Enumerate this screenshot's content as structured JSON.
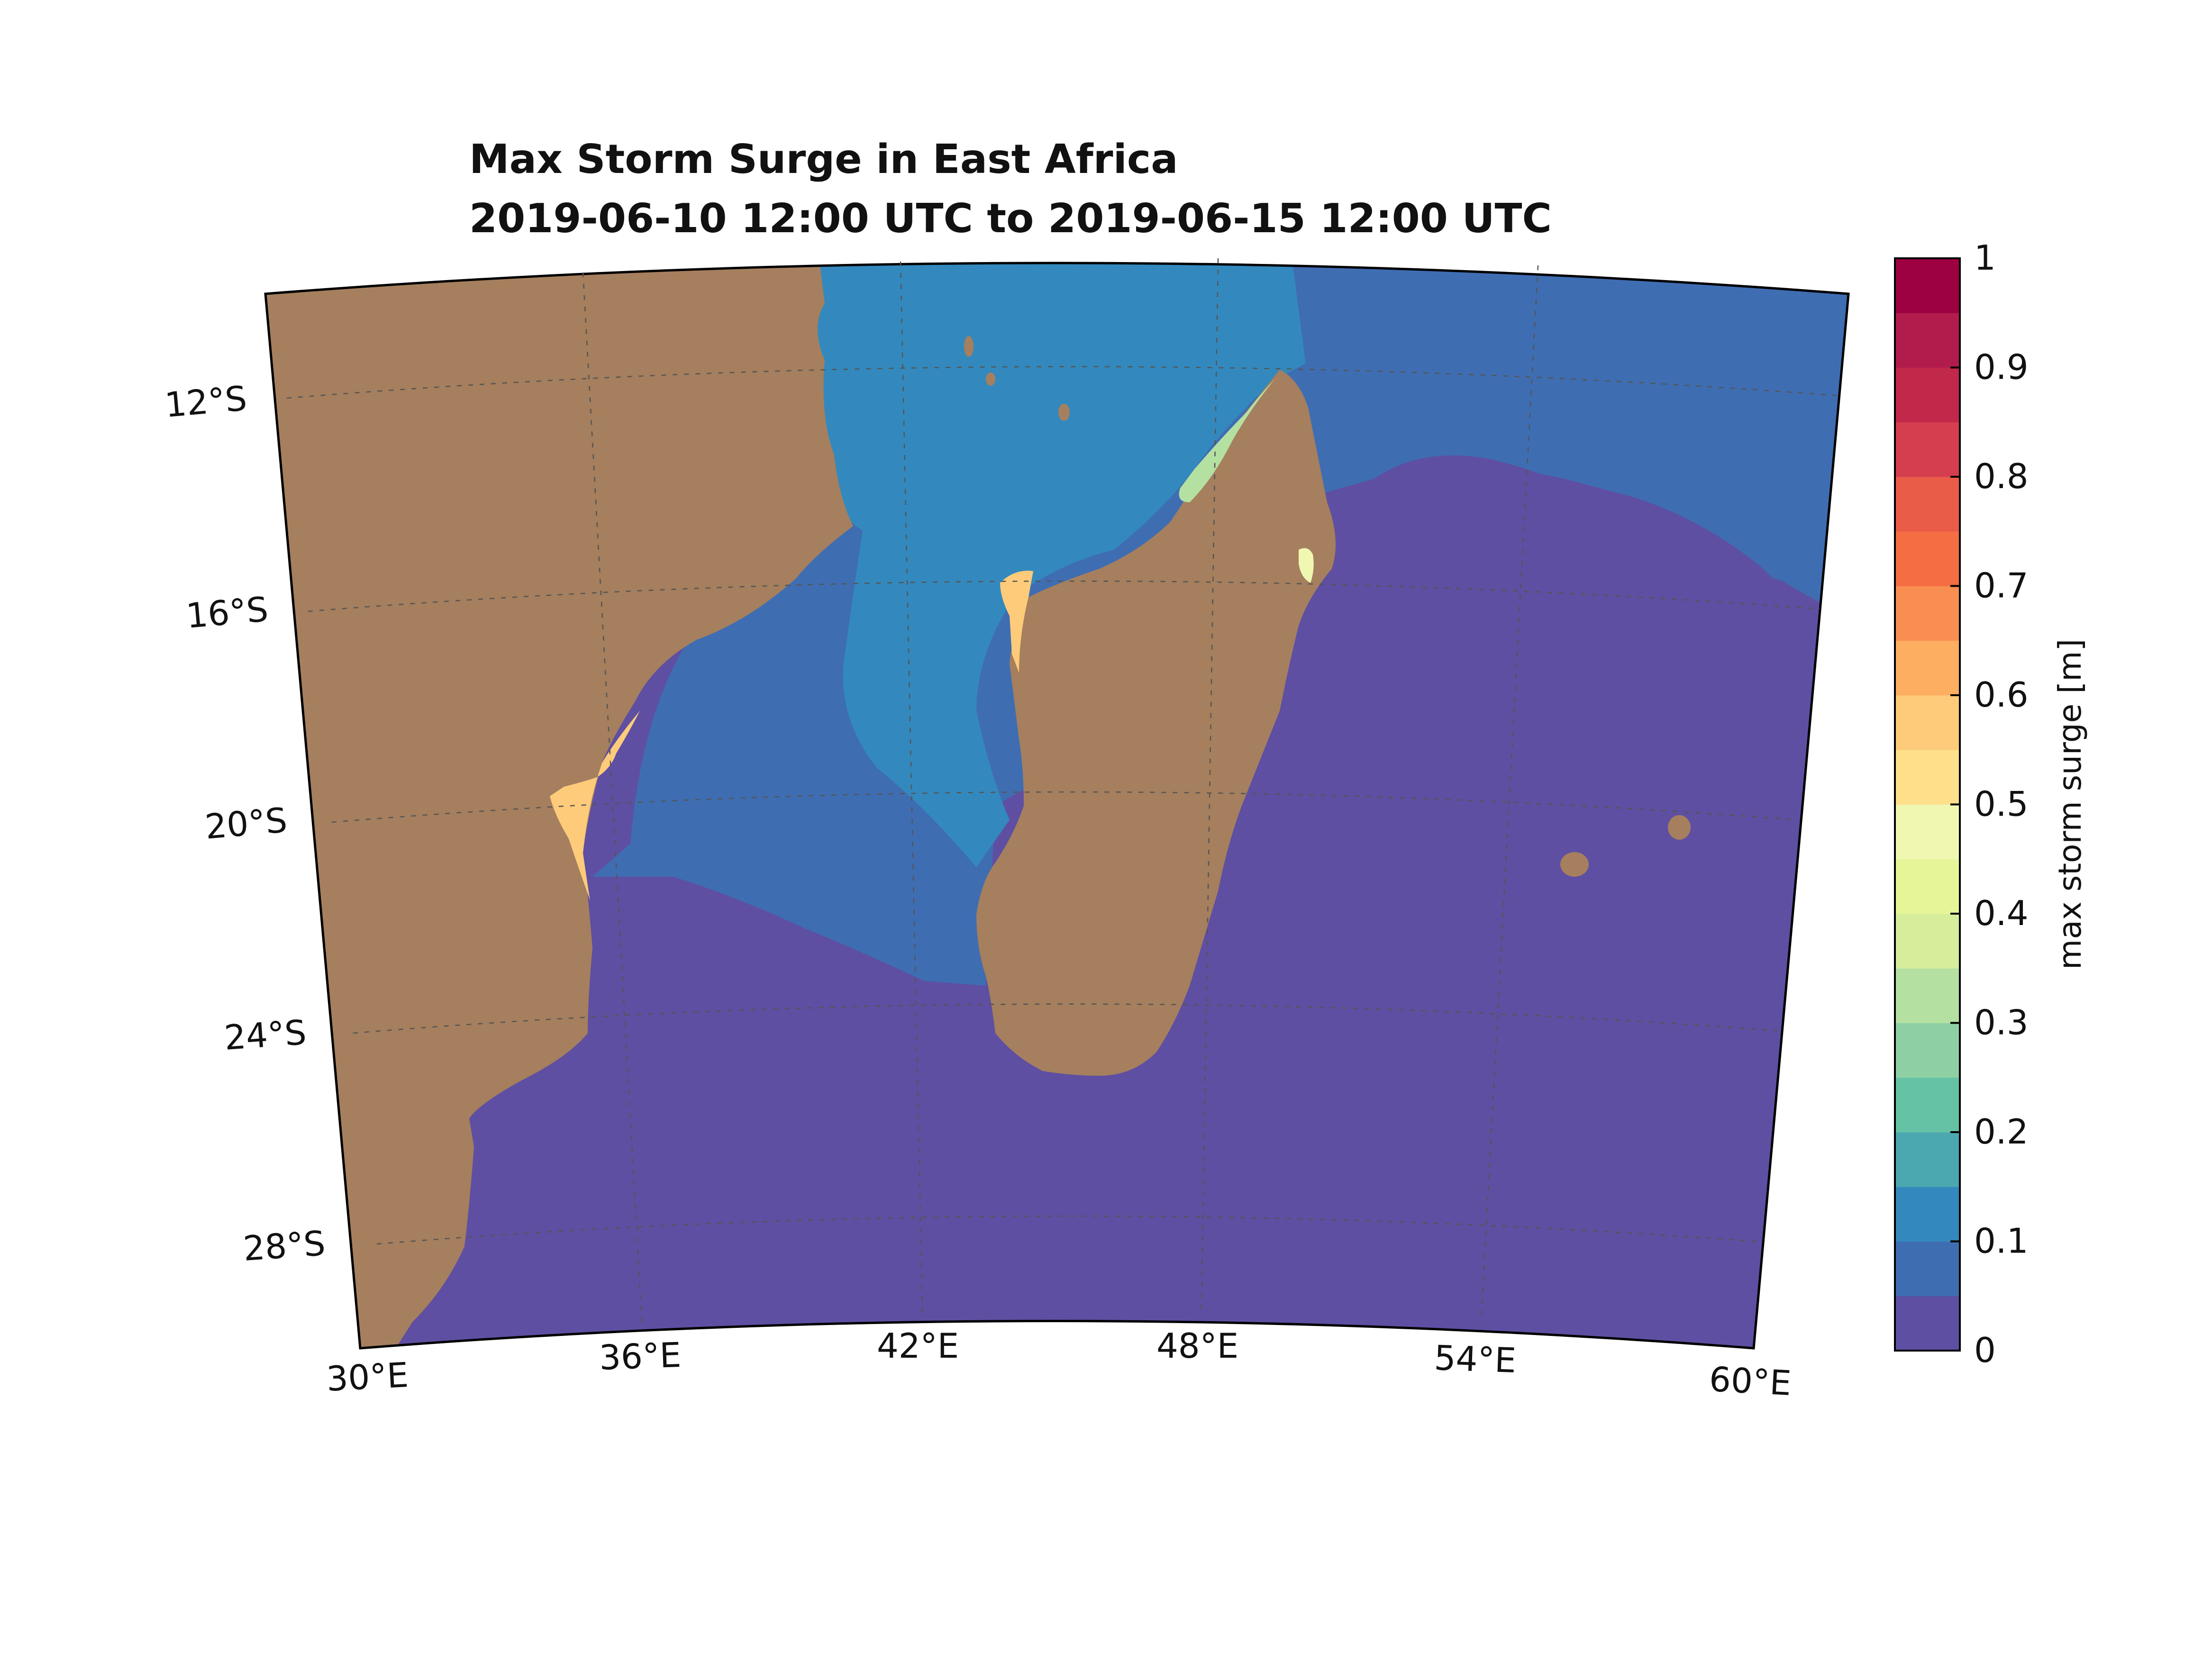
{
  "title": {
    "line1": "Max Storm Surge in East Africa",
    "line2": "2019-06-10 12:00 UTC to 2019-06-15 12:00 UTC"
  },
  "map": {
    "lon_range": [
      30,
      60
    ],
    "lat_range": [
      -30,
      -10
    ],
    "lon_ticks": [
      "30°E",
      "36°E",
      "42°E",
      "48°E",
      "54°E",
      "60°E"
    ],
    "lat_ticks": [
      "12°S",
      "16°S",
      "20°S",
      "24°S",
      "28°S"
    ],
    "gridlines": true,
    "land_color": "#a57f5e"
  },
  "colorbar": {
    "label": "max storm surge [m]",
    "tick_labels": [
      "0",
      "0.1",
      "0.2",
      "0.3",
      "0.4",
      "0.5",
      "0.6",
      "0.7",
      "0.8",
      "0.9",
      "1"
    ],
    "range": [
      0,
      1
    ],
    "step": 0.05,
    "colors": [
      "#5e4fa2",
      "#3f6db2",
      "#3389bd",
      "#4ca8b0",
      "#66c2a5",
      "#8ed0a4",
      "#b4e0a2",
      "#d6ee9b",
      "#e6f598",
      "#f0f7b1",
      "#fee08b",
      "#fdcb7a",
      "#fdae61",
      "#f98e52",
      "#f46d43",
      "#e95c47",
      "#d53e4f",
      "#c2284a",
      "#b21c4c",
      "#9e0142"
    ]
  },
  "surge_fields": [
    {
      "name": "open-ocean",
      "value": 0.0
    },
    {
      "name": "mozambique-channel-deep",
      "value": 0.07
    },
    {
      "name": "channel-north",
      "value": 0.12
    },
    {
      "name": "east-of-madagascar-north",
      "value": 0.08
    },
    {
      "name": "sofala-coast-peak",
      "value": 0.55
    },
    {
      "name": "west-madagascar-peak",
      "value": 0.58
    },
    {
      "name": "nw-madagascar-coast",
      "value": 0.35
    },
    {
      "name": "ne-madagascar-coast",
      "value": 0.45
    }
  ]
}
